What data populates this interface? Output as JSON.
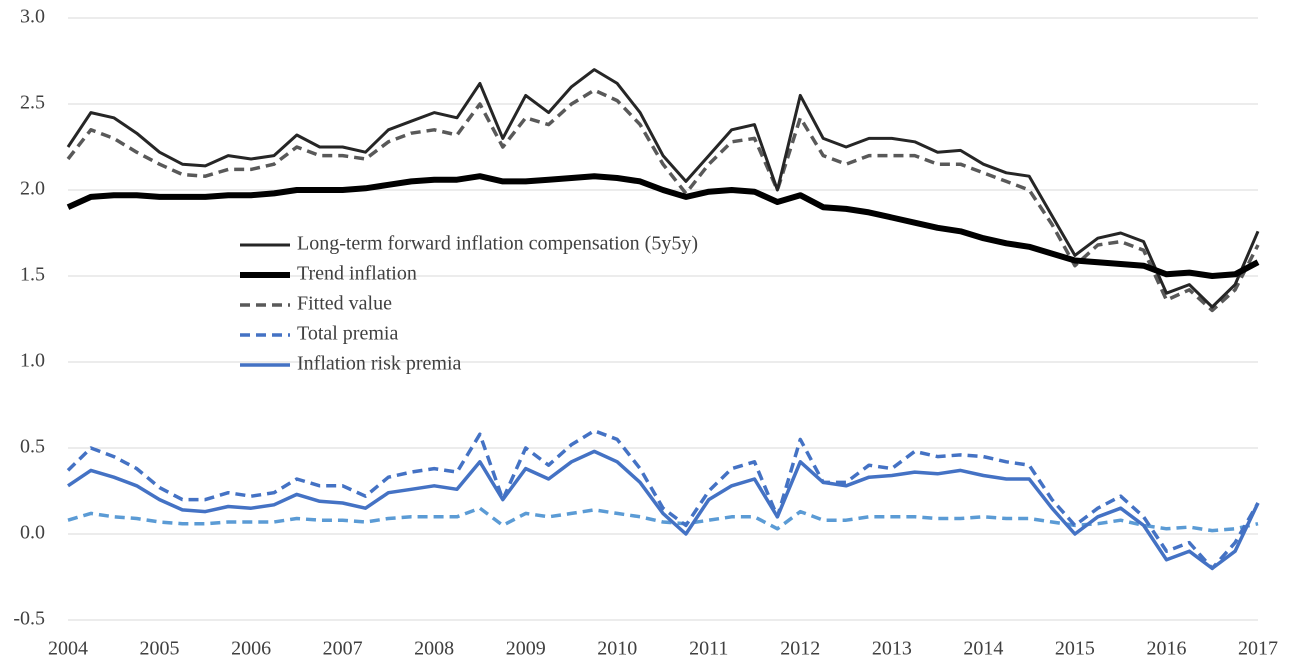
{
  "chart_data": {
    "type": "line",
    "x": [
      2004,
      2004.25,
      2004.5,
      2004.75,
      2005,
      2005.25,
      2005.5,
      2005.75,
      2006,
      2006.25,
      2006.5,
      2006.75,
      2007,
      2007.25,
      2007.5,
      2007.75,
      2008,
      2008.25,
      2008.5,
      2008.75,
      2009,
      2009.25,
      2009.5,
      2009.75,
      2010,
      2010.25,
      2010.5,
      2010.75,
      2011,
      2011.25,
      2011.5,
      2011.75,
      2012,
      2012.25,
      2012.5,
      2012.75,
      2013,
      2013.25,
      2013.5,
      2013.75,
      2014,
      2014.25,
      2014.5,
      2014.75,
      2015,
      2015.25,
      2015.5,
      2015.75,
      2016,
      2016.25,
      2016.5,
      2016.75,
      2017
    ],
    "xlim": [
      2004,
      2017
    ],
    "xticks": [
      2004,
      2005,
      2006,
      2007,
      2008,
      2009,
      2010,
      2011,
      2012,
      2013,
      2014,
      2015,
      2016,
      2017
    ],
    "ylim": [
      -0.5,
      3
    ],
    "yticks": [
      -0.5,
      {
        "value": 0,
        "label": "0.0"
      },
      0.5,
      {
        "value": 1,
        "label": "1.0"
      },
      1.5,
      {
        "value": 2,
        "label": "2.0"
      },
      2.5,
      {
        "value": 3,
        "label": "3.0"
      }
    ],
    "grid": true,
    "series": [
      {
        "name": "Long-term forward inflation compensation (5y5y)",
        "color": "#262626",
        "style": "thin",
        "values": [
          2.25,
          2.45,
          2.42,
          2.33,
          2.22,
          2.15,
          2.14,
          2.2,
          2.18,
          2.2,
          2.32,
          2.25,
          2.25,
          2.22,
          2.35,
          2.4,
          2.45,
          2.42,
          2.62,
          2.3,
          2.55,
          2.45,
          2.6,
          2.7,
          2.62,
          2.45,
          2.2,
          2.05,
          2.2,
          2.35,
          2.38,
          2.0,
          2.55,
          2.3,
          2.25,
          2.3,
          2.3,
          2.28,
          2.22,
          2.23,
          2.15,
          2.1,
          2.08,
          1.85,
          1.62,
          1.72,
          1.75,
          1.7,
          1.4,
          1.45,
          1.32,
          1.45,
          1.76
        ]
      },
      {
        "name": "Trend inflation",
        "color": "#000000",
        "style": "thick",
        "values": [
          1.9,
          1.96,
          1.97,
          1.97,
          1.96,
          1.96,
          1.96,
          1.97,
          1.97,
          1.98,
          2.0,
          2.0,
          2.0,
          2.01,
          2.03,
          2.05,
          2.06,
          2.06,
          2.08,
          2.05,
          2.05,
          2.06,
          2.07,
          2.08,
          2.07,
          2.05,
          2.0,
          1.96,
          1.99,
          2.0,
          1.99,
          1.93,
          1.97,
          1.9,
          1.89,
          1.87,
          1.84,
          1.81,
          1.78,
          1.76,
          1.72,
          1.69,
          1.67,
          1.63,
          1.59,
          1.58,
          1.57,
          1.56,
          1.51,
          1.52,
          1.5,
          1.51,
          1.58
        ]
      },
      {
        "name": "Fitted value",
        "color": "#595959",
        "style": "dashed",
        "values": [
          2.18,
          2.35,
          2.3,
          2.22,
          2.15,
          2.09,
          2.08,
          2.12,
          2.12,
          2.15,
          2.25,
          2.2,
          2.2,
          2.18,
          2.28,
          2.33,
          2.35,
          2.32,
          2.5,
          2.25,
          2.42,
          2.38,
          2.5,
          2.58,
          2.52,
          2.38,
          2.15,
          1.98,
          2.15,
          2.28,
          2.3,
          2.0,
          2.42,
          2.2,
          2.15,
          2.2,
          2.2,
          2.2,
          2.15,
          2.15,
          2.1,
          2.05,
          2.0,
          1.8,
          1.56,
          1.68,
          1.7,
          1.65,
          1.36,
          1.42,
          1.3,
          1.42,
          1.68
        ]
      },
      {
        "name": "Total premia",
        "color": "#4472c4",
        "style": "dashed",
        "values": [
          0.37,
          0.5,
          0.45,
          0.38,
          0.27,
          0.2,
          0.2,
          0.24,
          0.22,
          0.24,
          0.32,
          0.28,
          0.28,
          0.22,
          0.33,
          0.36,
          0.38,
          0.36,
          0.58,
          0.2,
          0.5,
          0.4,
          0.52,
          0.6,
          0.55,
          0.38,
          0.15,
          0.05,
          0.25,
          0.38,
          0.42,
          0.1,
          0.55,
          0.3,
          0.3,
          0.4,
          0.38,
          0.48,
          0.45,
          0.46,
          0.45,
          0.42,
          0.4,
          0.2,
          0.05,
          0.15,
          0.22,
          0.1,
          -0.1,
          -0.05,
          -0.2,
          -0.05,
          0.18
        ]
      },
      {
        "name": "Inflation risk premia",
        "color": "#4472c4",
        "style": "solid",
        "values": [
          0.28,
          0.37,
          0.33,
          0.28,
          0.2,
          0.14,
          0.13,
          0.16,
          0.15,
          0.17,
          0.23,
          0.19,
          0.18,
          0.15,
          0.24,
          0.26,
          0.28,
          0.26,
          0.42,
          0.2,
          0.38,
          0.32,
          0.42,
          0.48,
          0.42,
          0.3,
          0.12,
          0.0,
          0.2,
          0.28,
          0.32,
          0.1,
          0.42,
          0.3,
          0.28,
          0.33,
          0.34,
          0.36,
          0.35,
          0.37,
          0.34,
          0.32,
          0.32,
          0.15,
          0.0,
          0.1,
          0.15,
          0.05,
          -0.15,
          -0.1,
          -0.2,
          -0.1,
          0.18
        ]
      },
      {
        "color": "#5b9bd5",
        "style": "dashed",
        "values": [
          0.08,
          0.12,
          0.1,
          0.09,
          0.07,
          0.06,
          0.06,
          0.07,
          0.07,
          0.07,
          0.09,
          0.08,
          0.08,
          0.07,
          0.09,
          0.1,
          0.1,
          0.1,
          0.15,
          0.05,
          0.12,
          0.1,
          0.12,
          0.14,
          0.12,
          0.1,
          0.07,
          0.06,
          0.08,
          0.1,
          0.1,
          0.03,
          0.13,
          0.08,
          0.08,
          0.1,
          0.1,
          0.1,
          0.09,
          0.09,
          0.1,
          0.09,
          0.09,
          0.07,
          0.05,
          0.06,
          0.08,
          0.05,
          0.03,
          0.04,
          0.02,
          0.03,
          0.06
        ]
      }
    ]
  }
}
